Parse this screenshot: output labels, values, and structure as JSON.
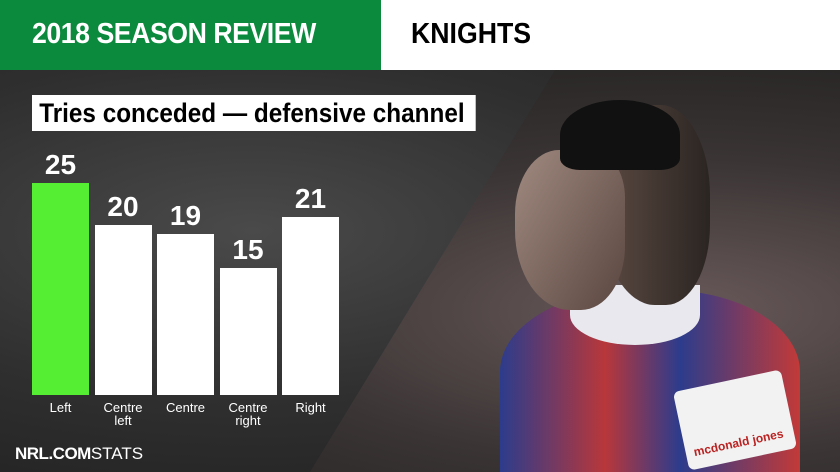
{
  "header": {
    "title": "2018 SEASON REVIEW",
    "team": "KNIGHTS"
  },
  "colors": {
    "header_green": "#0b8a3e",
    "highlight_bar": "#55ee33",
    "bar": "#ffffff"
  },
  "chart_data": {
    "type": "bar",
    "title": "Tries conceded — defensive channel",
    "categories": [
      "Left",
      "Centre left",
      "Centre",
      "Centre right",
      "Right"
    ],
    "category_lines": [
      [
        "Left"
      ],
      [
        "Centre",
        "left"
      ],
      [
        "Centre"
      ],
      [
        "Centre",
        "right"
      ],
      [
        "Right"
      ]
    ],
    "values": [
      25,
      20,
      19,
      15,
      21
    ],
    "highlight_index": 0,
    "ylim": [
      0,
      25
    ],
    "grid": false
  },
  "footer": {
    "logo_bold": "NRL.COM",
    "logo_light": "STATS"
  },
  "sponsor_text": "mcdonald jones"
}
